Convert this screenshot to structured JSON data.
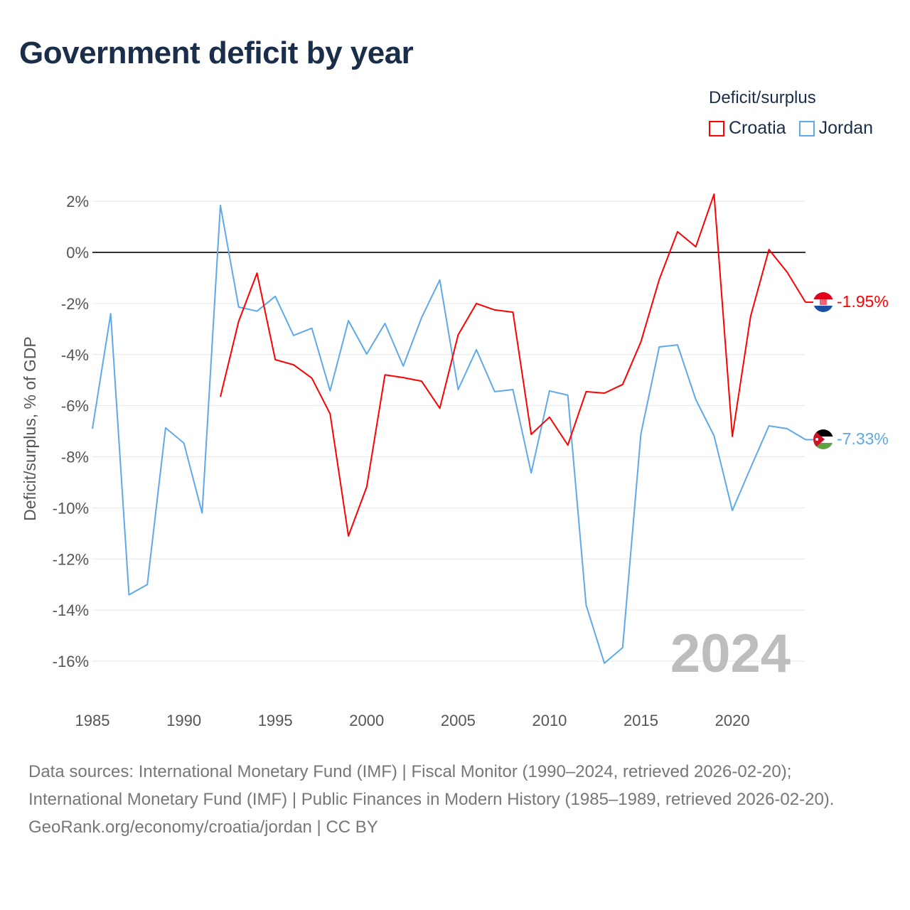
{
  "title": "Government deficit by year",
  "legend": {
    "title": "Deficit/surplus",
    "items": [
      {
        "name": "Croatia",
        "color": "#ff0000"
      },
      {
        "name": "Jordan",
        "color": "#5ea8ec"
      }
    ]
  },
  "watermark_year": "2024",
  "footer": {
    "sources": "Data sources: International Monetary Fund (IMF) | Fiscal Monitor (1990–2024, retrieved 2026-02-20); International Monetary Fund (IMF) | Public Finances in Modern History (1985–1989, retrieved 2026-02-20).",
    "credit": "GeoRank.org/economy/croatia/jordan | CC BY"
  },
  "chart_data": {
    "type": "line",
    "title": "Government deficit by year",
    "xlabel": "",
    "ylabel": "Deficit/surplus, % of GDP",
    "xlim": [
      1985,
      2024
    ],
    "ylim": [
      -16,
      2
    ],
    "x_ticks": [
      1985,
      1990,
      1995,
      2000,
      2005,
      2010,
      2015,
      2020
    ],
    "x_tick_labels": [
      "1985",
      "1990",
      "1995",
      "2000",
      "2005",
      "2010",
      "2015",
      "2020"
    ],
    "y_ticks": [
      2,
      0,
      -2,
      -4,
      -6,
      -8,
      -10,
      -12,
      -14,
      -16
    ],
    "y_tick_labels": [
      "2%",
      "0%",
      "-2%",
      "-4%",
      "-6%",
      "-8%",
      "-10%",
      "-12%",
      "-14%",
      "-16%"
    ],
    "grid": true,
    "legend_position": "top-right",
    "series": [
      {
        "name": "Croatia",
        "color": "#ff0000",
        "end_label": "-1.95%",
        "x": [
          1992,
          1993,
          1994,
          1995,
          1996,
          1997,
          1998,
          1999,
          2000,
          2001,
          2002,
          2003,
          2004,
          2005,
          2006,
          2007,
          2008,
          2009,
          2010,
          2011,
          2012,
          2013,
          2014,
          2015,
          2016,
          2017,
          2018,
          2019,
          2020,
          2021,
          2022,
          2023,
          2024
        ],
        "values": [
          -5.65,
          -2.7,
          -0.81,
          -4.2,
          -4.4,
          -4.92,
          -6.32,
          -11.1,
          -9.18,
          -4.79,
          -4.9,
          -5.04,
          -6.1,
          -3.23,
          -2.0,
          -2.25,
          -2.34,
          -7.12,
          -6.45,
          -7.54,
          -5.45,
          -5.51,
          -5.17,
          -3.5,
          -1.06,
          0.81,
          0.22,
          2.28,
          -7.2,
          -2.5,
          0.11,
          -0.78,
          -1.95
        ]
      },
      {
        "name": "Jordan",
        "color": "#5ea8ec",
        "end_label": "-7.33%",
        "x": [
          1985,
          1986,
          1987,
          1988,
          1989,
          1990,
          1991,
          1992,
          1993,
          1994,
          1995,
          1996,
          1997,
          1998,
          1999,
          2000,
          2001,
          2002,
          2003,
          2004,
          2005,
          2006,
          2007,
          2008,
          2009,
          2010,
          2011,
          2012,
          2013,
          2014,
          2015,
          2016,
          2017,
          2018,
          2019,
          2020,
          2021,
          2022,
          2023,
          2024
        ],
        "values": [
          -6.9,
          -2.4,
          -13.4,
          -13.0,
          -6.87,
          -7.46,
          -10.2,
          1.84,
          -2.14,
          -2.3,
          -1.72,
          -3.25,
          -2.97,
          -5.42,
          -2.67,
          -3.98,
          -2.78,
          -4.45,
          -2.56,
          -1.08,
          -5.37,
          -3.81,
          -5.45,
          -5.37,
          -8.63,
          -5.42,
          -5.59,
          -13.8,
          -16.08,
          -15.47,
          -7.1,
          -3.7,
          -3.62,
          -5.76,
          -7.18,
          -10.1,
          -8.43,
          -6.79,
          -6.9,
          -7.33
        ]
      }
    ]
  }
}
